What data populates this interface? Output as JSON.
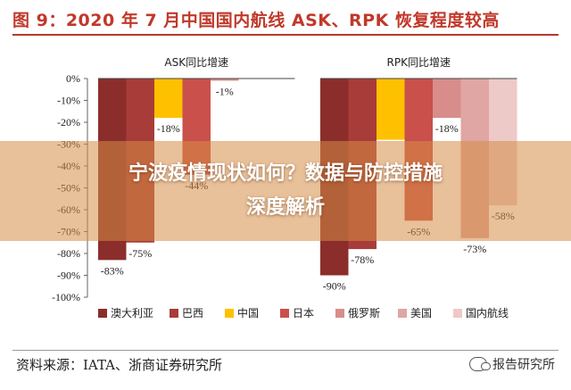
{
  "title": "图 9：2020 年 7 月中国国内航线 ASK、RPK 恢复程度较高",
  "overlay": {
    "line1": "宁波疫情现状如何？数据与防控措施",
    "line2": "深度解析"
  },
  "source": "资料来源：IATA、浙商证券研究所",
  "watermark": "报告研究所",
  "chart_data": {
    "type": "bar",
    "ylim": [
      -100,
      0
    ],
    "yticks": [
      0,
      -10,
      -20,
      -30,
      -40,
      -50,
      -60,
      -70,
      -80,
      -90,
      -100
    ],
    "ytick_labels": [
      "0%",
      "-10%",
      "-20%",
      "-30%",
      "-40%",
      "-50%",
      "-60%",
      "-70%",
      "-80%",
      "-90%",
      "-100%"
    ],
    "panels": [
      {
        "title": "ASK同比增速",
        "values": [
          -83,
          -75,
          -18,
          -44,
          -1,
          null,
          null
        ]
      },
      {
        "title": "RPK同比增速",
        "values": [
          -90,
          -78,
          -28,
          -65,
          -18,
          -73,
          -58
        ]
      }
    ],
    "bar_labels": [
      [
        "-83%",
        "-75%",
        "-18%",
        "-44%",
        "-1%",
        "",
        ""
      ],
      [
        "-90%",
        "-78%",
        "",
        "-65%",
        "-18%",
        "-73%",
        "-58%"
      ]
    ],
    "series": [
      {
        "name": "澳大利亚",
        "color": "#8b2d2b"
      },
      {
        "name": "巴西",
        "color": "#a83c38"
      },
      {
        "name": "中国",
        "color": "#ffc000"
      },
      {
        "name": "日本",
        "color": "#c9504b"
      },
      {
        "name": "俄罗斯",
        "color": "#d88d8a"
      },
      {
        "name": "美国",
        "color": "#e0a6a3"
      },
      {
        "name": "国内航线",
        "color": "#edc9c7"
      }
    ]
  }
}
